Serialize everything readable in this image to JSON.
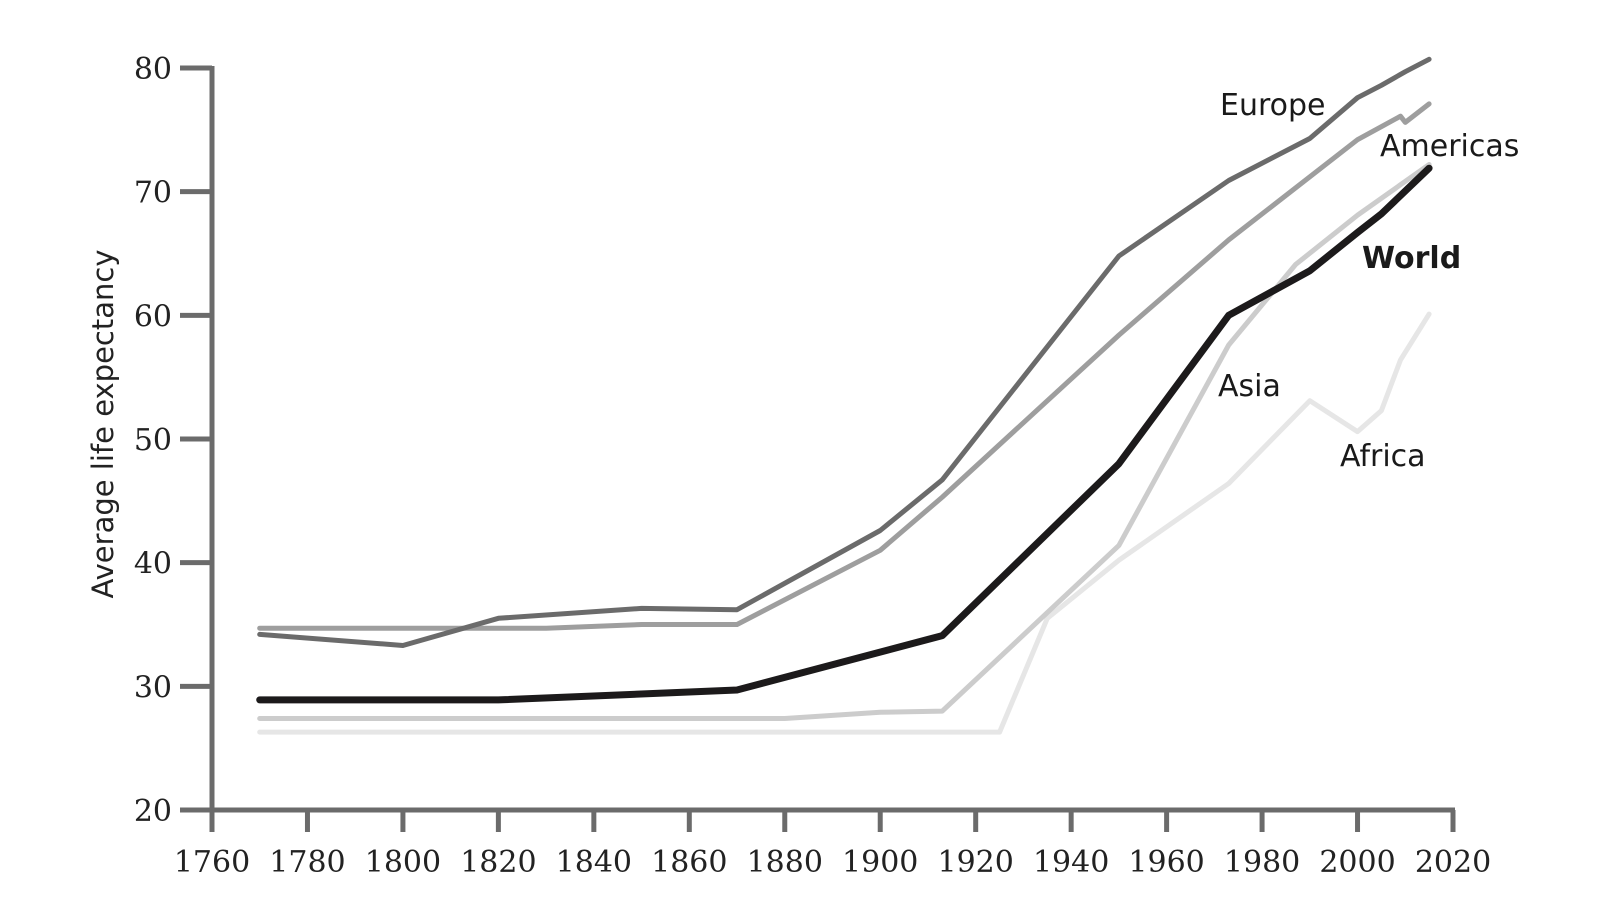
{
  "chart_data": {
    "type": "line",
    "title": "",
    "xlabel": "",
    "ylabel": "Average life expectancy",
    "xlim": [
      1760,
      2020
    ],
    "ylim": [
      20,
      80
    ],
    "x_ticks": [
      1760,
      1780,
      1800,
      1820,
      1840,
      1860,
      1880,
      1900,
      1920,
      1940,
      1960,
      1980,
      2000,
      2020
    ],
    "y_ticks": [
      20,
      30,
      40,
      50,
      60,
      70,
      80
    ],
    "grid": false,
    "legend": "inline labels",
    "series": [
      {
        "name": "Europe",
        "color": "#6b6b6b",
        "width": 5,
        "x": [
          1770,
          1800,
          1820,
          1850,
          1870,
          1900,
          1913,
          1950,
          1973,
          1990,
          2000,
          2005,
          2010,
          2015
        ],
        "values": [
          34.2,
          33.3,
          35.5,
          36.3,
          36.2,
          42.6,
          46.7,
          64.8,
          70.9,
          74.3,
          77.6,
          78.6,
          79.7,
          80.7
        ]
      },
      {
        "name": "Americas",
        "color": "#9e9e9e",
        "width": 5,
        "x": [
          1770,
          1830,
          1850,
          1870,
          1900,
          1913,
          1950,
          1973,
          2000,
          2009,
          2010,
          2015
        ],
        "values": [
          34.7,
          34.7,
          35.0,
          35.0,
          41.0,
          45.3,
          58.4,
          66.1,
          74.2,
          76.1,
          75.6,
          77.1
        ]
      },
      {
        "name": "World",
        "color": "#1c1a1b",
        "width": 7,
        "x": [
          1770,
          1800,
          1820,
          1870,
          1913,
          1950,
          1973,
          1990,
          2000,
          2005,
          2015
        ],
        "values": [
          28.9,
          28.9,
          28.9,
          29.7,
          34.1,
          48.0,
          60.0,
          63.6,
          66.7,
          68.2,
          71.9
        ]
      },
      {
        "name": "Asia",
        "color": "#cccccc",
        "width": 5,
        "x": [
          1770,
          1880,
          1900,
          1913,
          1950,
          1973,
          1987,
          2000,
          2015
        ],
        "values": [
          27.4,
          27.4,
          27.9,
          28.0,
          41.4,
          57.6,
          64.1,
          68.1,
          72.2
        ]
      },
      {
        "name": "Africa",
        "color": "#e6e6e6",
        "width": 5,
        "x": [
          1770,
          1925,
          1935,
          1950,
          1973,
          1990,
          2000,
          2005,
          2009,
          2015
        ],
        "values": [
          26.3,
          26.3,
          35.5,
          40.2,
          46.4,
          53.1,
          50.6,
          52.3,
          56.4,
          60.1
        ]
      }
    ],
    "annotations": [
      {
        "text": "Europe",
        "x": 1962,
        "y": 77.2,
        "bold": false
      },
      {
        "text": "Americas",
        "x": 1996,
        "y": 73.5,
        "bold": false
      },
      {
        "text": "World",
        "x": 2001,
        "y": 64.4,
        "bold": true
      },
      {
        "text": "Asia",
        "x": 1972,
        "y": 54.1,
        "bold": false
      },
      {
        "text": "Africa",
        "x": 1996,
        "y": 48.6,
        "bold": false
      }
    ]
  },
  "axes": {
    "y_title": "Average life expectancy",
    "y_tick_labels": [
      "20",
      "30",
      "40",
      "50",
      "60",
      "70",
      "80"
    ],
    "x_tick_labels": [
      "1760",
      "1780",
      "1800",
      "1820",
      "1840",
      "1860",
      "1880",
      "1900",
      "1920",
      "1940",
      "1960",
      "1980",
      "2000",
      "2020"
    ]
  },
  "labels": {
    "europe": "Europe",
    "americas": "Americas",
    "world": "World",
    "asia": "Asia",
    "africa": "Africa"
  }
}
